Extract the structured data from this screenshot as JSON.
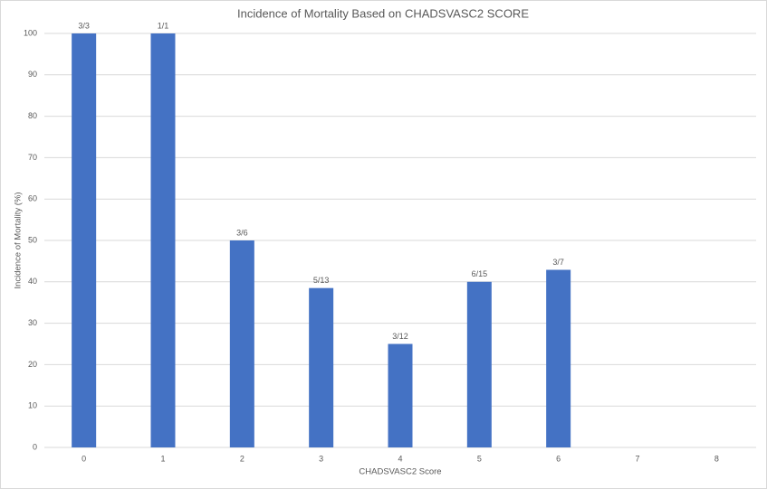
{
  "chart_data": {
    "type": "bar",
    "title": "Incidence of Mortality Based on CHADSVASC2 SCORE",
    "x_label": "CHADSVASC2 Score",
    "y_label": "Incidence of Mortality (%)",
    "categories": [
      "0",
      "1",
      "2",
      "3",
      "4",
      "5",
      "6",
      "7",
      "8"
    ],
    "values": [
      100,
      100,
      50,
      38.5,
      25,
      40,
      42.9,
      null,
      null
    ],
    "value_labels": [
      "3/3",
      "1/1",
      "3/6",
      "5/13",
      "3/12",
      "6/15",
      "3/7",
      null,
      null
    ],
    "color": "#4472c4",
    "ylim": [
      0,
      100
    ],
    "yticks": [
      0,
      10,
      20,
      30,
      40,
      50,
      60,
      70,
      80,
      90,
      100
    ],
    "grid": true
  }
}
